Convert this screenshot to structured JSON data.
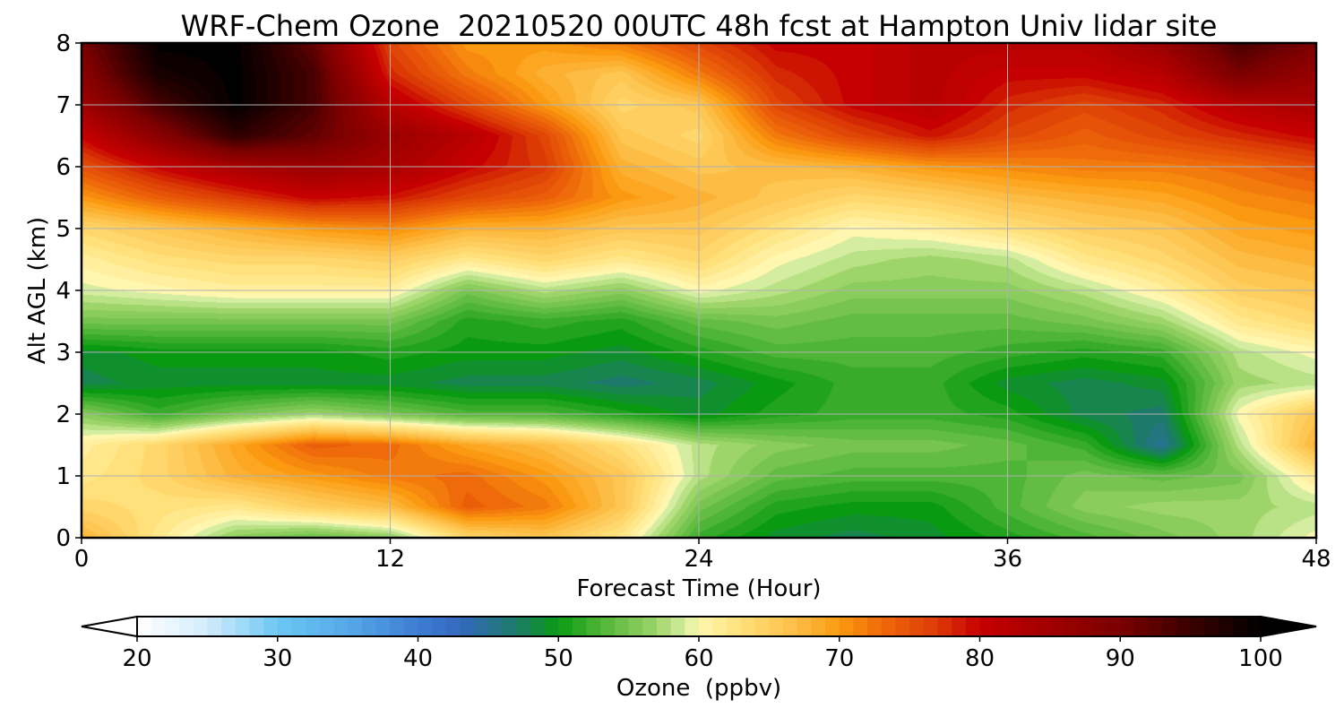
{
  "chart_data": {
    "type": "heatmap",
    "title": "WRF-Chem Ozone  20210520 00UTC 48h fcst at Hampton Univ lidar site",
    "xlabel": "Forecast Time (Hour)",
    "ylabel": "Alt AGL (km)",
    "xlim": [
      0,
      48
    ],
    "ylim": [
      0,
      8
    ],
    "x_ticks": [
      "0",
      "12",
      "24",
      "36",
      "48"
    ],
    "y_ticks": [
      "0",
      "1",
      "2",
      "3",
      "4",
      "5",
      "6",
      "7",
      "8"
    ],
    "grid": true,
    "colorbar": {
      "label": "Ozone  (ppbv)",
      "range": [
        20,
        100
      ],
      "ticks": [
        "20",
        "30",
        "40",
        "50",
        "60",
        "70",
        "80",
        "90",
        "100"
      ],
      "extend": "both",
      "stops": [
        {
          "value": 20,
          "color": "#ffffff"
        },
        {
          "value": 25,
          "color": "#d2ecfb"
        },
        {
          "value": 30,
          "color": "#6cc7f4"
        },
        {
          "value": 35,
          "color": "#56a8e8"
        },
        {
          "value": 40,
          "color": "#3d7dd3"
        },
        {
          "value": 43,
          "color": "#3468be"
        },
        {
          "value": 47,
          "color": "#1d7a6a"
        },
        {
          "value": 50,
          "color": "#0a9a12"
        },
        {
          "value": 53,
          "color": "#4fb536"
        },
        {
          "value": 57,
          "color": "#9ed56a"
        },
        {
          "value": 59,
          "color": "#d4eda0"
        },
        {
          "value": 60,
          "color": "#fff7b0"
        },
        {
          "value": 63,
          "color": "#ffe07a"
        },
        {
          "value": 67,
          "color": "#fdbd45"
        },
        {
          "value": 70,
          "color": "#fb9a10"
        },
        {
          "value": 73,
          "color": "#ef6a0a"
        },
        {
          "value": 77,
          "color": "#db3a05"
        },
        {
          "value": 80,
          "color": "#c60000"
        },
        {
          "value": 85,
          "color": "#a00000"
        },
        {
          "value": 90,
          "color": "#7a0000"
        },
        {
          "value": 95,
          "color": "#3a0000"
        },
        {
          "value": 100,
          "color": "#000000"
        }
      ]
    },
    "times": [
      0,
      3,
      6,
      9,
      12,
      15,
      18,
      21,
      24,
      27,
      30,
      33,
      36,
      39,
      42,
      45,
      48
    ],
    "altitudes": [
      0,
      0.5,
      1,
      1.5,
      2,
      2.5,
      3,
      3.5,
      4,
      4.5,
      5,
      5.5,
      6,
      6.5,
      7,
      7.5,
      8
    ],
    "values": [
      [
        68,
        62,
        56,
        54,
        56,
        64,
        66,
        62,
        52,
        49,
        48,
        49,
        51,
        53,
        55,
        57,
        60
      ],
      [
        64,
        63,
        62,
        65,
        67,
        74,
        72,
        66,
        55,
        51,
        50,
        50,
        53,
        56,
        57,
        57,
        58
      ],
      [
        62,
        64,
        68,
        70,
        72,
        73,
        70,
        66,
        58,
        54,
        53,
        53,
        53,
        55,
        54,
        55,
        62
      ],
      [
        61,
        64,
        69,
        74,
        73,
        69,
        67,
        63,
        58,
        56,
        55,
        55,
        54,
        52,
        45,
        58,
        68
      ],
      [
        56,
        52,
        55,
        57,
        55,
        53,
        53,
        51,
        49,
        51,
        52,
        52,
        51,
        48,
        47,
        60,
        66
      ],
      [
        48,
        49,
        49,
        49,
        49,
        48,
        48,
        47,
        48,
        50,
        52,
        52,
        49,
        48,
        49,
        57,
        58
      ],
      [
        49,
        50,
        50,
        50,
        51,
        50,
        50,
        49,
        51,
        53,
        53,
        53,
        52,
        51,
        52,
        58,
        60
      ],
      [
        55,
        55,
        55,
        55,
        55,
        51,
        52,
        51,
        54,
        55,
        54,
        54,
        54,
        55,
        57,
        62,
        64
      ],
      [
        59,
        60,
        61,
        61,
        61,
        55,
        58,
        56,
        60,
        58,
        56,
        56,
        56,
        58,
        61,
        65,
        66
      ],
      [
        61,
        63,
        64,
        64,
        65,
        62,
        64,
        62,
        64,
        60,
        58,
        57,
        58,
        62,
        64,
        67,
        68
      ],
      [
        64,
        66,
        68,
        70,
        71,
        68,
        68,
        66,
        66,
        63,
        60,
        61,
        63,
        65,
        66,
        69,
        70
      ],
      [
        70,
        74,
        77,
        80,
        79,
        76,
        74,
        70,
        68,
        66,
        64,
        65,
        67,
        68,
        69,
        71,
        72
      ],
      [
        75,
        80,
        84,
        86,
        84,
        80,
        77,
        68,
        66,
        67,
        68,
        70,
        71,
        72,
        72,
        73,
        75
      ],
      [
        80,
        88,
        96,
        92,
        86,
        82,
        76,
        66,
        64,
        72,
        76,
        79,
        76,
        74,
        76,
        78,
        80
      ],
      [
        85,
        94,
        100,
        94,
        82,
        76,
        70,
        64,
        66,
        76,
        80,
        82,
        78,
        76,
        78,
        82,
        84
      ],
      [
        88,
        98,
        100,
        94,
        78,
        72,
        68,
        66,
        72,
        78,
        80,
        82,
        80,
        80,
        82,
        90,
        86
      ],
      [
        90,
        100,
        100,
        92,
        76,
        70,
        70,
        72,
        76,
        80,
        80,
        82,
        82,
        82,
        86,
        94,
        90
      ]
    ]
  }
}
